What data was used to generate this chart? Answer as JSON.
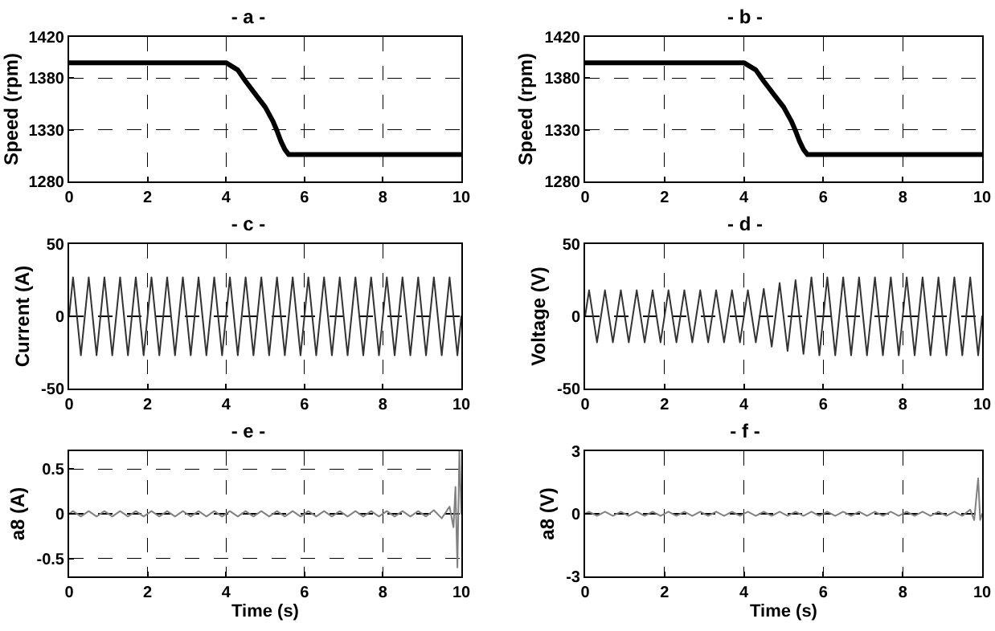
{
  "chart_data": [
    {
      "type": "line",
      "title": "- a -",
      "ylabel": "Speed (rpm)",
      "x": [
        0,
        4,
        4.3,
        4.5,
        4.8,
        5,
        5.2,
        5.3,
        5.4,
        5.5,
        5.6,
        10
      ],
      "series": [
        {
          "color": "#000000",
          "values": [
            1395,
            1395,
            1388,
            1377,
            1362,
            1352,
            1338,
            1329,
            1319,
            1311,
            1306,
            1306
          ]
        }
      ],
      "xlim": [
        0,
        10
      ],
      "xticks": [
        0,
        2,
        4,
        6,
        8,
        10
      ],
      "ylim": [
        1280,
        1420
      ],
      "yticks": [
        1280,
        1330,
        1380,
        1420
      ],
      "grid": true,
      "line_style": "solid"
    },
    {
      "type": "line",
      "title": "- b -",
      "ylabel": "Speed (rpm)",
      "x": [
        0,
        4,
        4.3,
        4.5,
        4.8,
        5,
        5.2,
        5.3,
        5.4,
        5.5,
        5.6,
        10
      ],
      "series": [
        {
          "color": "#000000",
          "values": [
            1395,
            1395,
            1388,
            1377,
            1362,
            1352,
            1338,
            1329,
            1319,
            1311,
            1306,
            1306
          ]
        }
      ],
      "xlim": [
        0,
        10
      ],
      "xticks": [
        0,
        2,
        4,
        6,
        8,
        10
      ],
      "ylim": [
        1280,
        1420
      ],
      "yticks": [
        1280,
        1330,
        1380,
        1420
      ],
      "grid": true,
      "line_style": "solid"
    },
    {
      "type": "line",
      "title": "- c -",
      "ylabel": "Current (A)",
      "x": [
        0,
        0.1,
        0.3,
        0.5,
        0.7,
        0.9,
        1.1,
        1.3,
        1.5,
        1.7,
        1.9,
        2.1,
        2.3,
        2.5,
        2.7,
        2.9,
        3.1,
        3.3,
        3.5,
        3.7,
        3.9,
        4.1,
        4.3,
        4.5,
        4.7,
        4.9,
        5.1,
        5.3,
        5.5,
        5.7,
        5.9,
        6.1,
        6.3,
        6.5,
        6.7,
        6.9,
        7.1,
        7.3,
        7.5,
        7.7,
        7.9,
        8.1,
        8.3,
        8.5,
        8.7,
        8.9,
        9.1,
        9.3,
        9.5,
        9.7,
        9.9,
        10
      ],
      "series": [
        {
          "color": "#333333",
          "values": [
            0,
            27,
            -27,
            27,
            -27,
            27,
            -27,
            27,
            -27,
            27,
            -27,
            27,
            -27,
            27,
            -27,
            27,
            -27,
            27,
            -27,
            27,
            -27,
            27,
            -27,
            27,
            -27,
            27,
            -27,
            27,
            -27,
            27,
            -27,
            27,
            -27,
            27,
            -27,
            27,
            -27,
            27,
            -27,
            27,
            -27,
            27,
            -27,
            27,
            -27,
            27,
            -27,
            27,
            -27,
            27,
            -27,
            0
          ]
        }
      ],
      "xlim": [
        0,
        10
      ],
      "xticks": [
        0,
        2,
        4,
        6,
        8,
        10
      ],
      "ylim": [
        -50,
        50
      ],
      "yticks": [
        -50,
        0,
        50
      ],
      "grid": true,
      "line_style": "solid"
    },
    {
      "type": "line",
      "title": "- d -",
      "ylabel": "Voltage (V)",
      "x": [
        0,
        0.1,
        0.3,
        0.5,
        0.7,
        0.9,
        1.1,
        1.3,
        1.5,
        1.7,
        1.9,
        2.1,
        2.3,
        2.5,
        2.7,
        2.9,
        3.1,
        3.3,
        3.5,
        3.7,
        3.9,
        4.1,
        4.3,
        4.5,
        4.7,
        4.9,
        5.1,
        5.3,
        5.5,
        5.7,
        5.9,
        6.1,
        6.3,
        6.5,
        6.7,
        6.9,
        7.1,
        7.3,
        7.5,
        7.7,
        7.9,
        8.1,
        8.3,
        8.5,
        8.7,
        8.9,
        9.1,
        9.3,
        9.5,
        9.7,
        9.9,
        10
      ],
      "series": [
        {
          "color": "#333333",
          "values": [
            0,
            18,
            -18,
            18,
            -18,
            18,
            -18,
            18,
            -18,
            18,
            -18,
            18,
            -18,
            18,
            -18,
            18,
            -18,
            18,
            -18,
            18,
            -18,
            18,
            -18,
            19,
            -21,
            23,
            -24,
            25,
            -26,
            27,
            -27,
            27,
            -27,
            27,
            -27,
            27,
            -27,
            27,
            -27,
            27,
            -27,
            27,
            -27,
            27,
            -27,
            27,
            -27,
            27,
            -27,
            27,
            -27,
            0
          ]
        }
      ],
      "xlim": [
        0,
        10
      ],
      "xticks": [
        0,
        2,
        4,
        6,
        8,
        10
      ],
      "ylim": [
        -50,
        50
      ],
      "yticks": [
        -50,
        0,
        50
      ],
      "grid": true,
      "line_style": "solid"
    },
    {
      "type": "line",
      "title": "- e -",
      "ylabel": "a8 (A)",
      "xlabel": "Time (s)",
      "x": [
        0,
        0.1,
        0.3,
        0.5,
        0.7,
        0.9,
        1.1,
        1.3,
        1.5,
        1.7,
        1.9,
        2.1,
        2.3,
        2.5,
        2.7,
        2.9,
        3.1,
        3.3,
        3.5,
        3.7,
        3.9,
        4.1,
        4.3,
        4.5,
        4.7,
        4.9,
        5.1,
        5.3,
        5.5,
        5.7,
        5.9,
        6.1,
        6.3,
        6.5,
        6.7,
        6.9,
        7.1,
        7.3,
        7.5,
        7.7,
        7.9,
        8.1,
        8.3,
        8.5,
        8.7,
        8.9,
        9.1,
        9.3,
        9.5,
        9.7,
        9.8,
        9.85,
        9.9,
        9.95,
        10
      ],
      "series": [
        {
          "color": "#808080",
          "values": [
            0,
            0.03,
            -0.03,
            0.03,
            -0.03,
            0.03,
            -0.03,
            0.03,
            -0.03,
            0.03,
            -0.03,
            0.03,
            -0.03,
            0.03,
            -0.03,
            0.03,
            -0.03,
            0.03,
            -0.03,
            0.03,
            -0.03,
            0.03,
            -0.03,
            0.03,
            -0.03,
            0.03,
            -0.03,
            0.03,
            -0.03,
            0.03,
            -0.03,
            0.03,
            -0.03,
            0.03,
            -0.03,
            0.03,
            -0.03,
            0.03,
            -0.03,
            0.03,
            -0.03,
            0.03,
            -0.03,
            0.03,
            -0.03,
            0.03,
            -0.03,
            0.04,
            -0.05,
            0.08,
            -0.15,
            0.3,
            -0.6,
            0.7,
            0
          ]
        }
      ],
      "xlim": [
        0,
        10
      ],
      "xticks": [
        0,
        2,
        4,
        6,
        8,
        10
      ],
      "ylim": [
        -0.7,
        0.7
      ],
      "yticks": [
        -0.5,
        0,
        0.5
      ],
      "grid": true,
      "line_style": "solid"
    },
    {
      "type": "line",
      "title": "- f -",
      "ylabel": "a8 (V)",
      "xlabel": "Time (s)",
      "x": [
        0,
        0.1,
        0.3,
        0.5,
        0.7,
        0.9,
        1.1,
        1.3,
        1.5,
        1.7,
        1.9,
        2.1,
        2.3,
        2.5,
        2.7,
        2.9,
        3.1,
        3.3,
        3.5,
        3.7,
        3.9,
        4.1,
        4.3,
        4.5,
        4.7,
        4.9,
        5.1,
        5.3,
        5.5,
        5.7,
        5.9,
        6.1,
        6.3,
        6.5,
        6.7,
        6.9,
        7.1,
        7.3,
        7.5,
        7.7,
        7.9,
        8.1,
        8.3,
        8.5,
        8.7,
        8.9,
        9.1,
        9.3,
        9.5,
        9.7,
        9.8,
        9.9,
        9.95,
        10
      ],
      "series": [
        {
          "color": "#808080",
          "values": [
            0,
            0.1,
            -0.1,
            0.1,
            -0.1,
            0.1,
            -0.1,
            0.1,
            -0.1,
            0.1,
            -0.1,
            0.1,
            -0.1,
            0.1,
            -0.1,
            0.1,
            -0.1,
            0.1,
            -0.1,
            0.1,
            -0.1,
            0.1,
            -0.1,
            0.1,
            -0.1,
            0.1,
            -0.1,
            0.1,
            -0.1,
            0.1,
            -0.1,
            0.1,
            -0.1,
            0.1,
            -0.1,
            0.1,
            -0.1,
            0.1,
            -0.1,
            0.1,
            -0.1,
            0.1,
            -0.1,
            0.1,
            -0.1,
            0.1,
            -0.1,
            0.1,
            -0.1,
            0.2,
            -0.3,
            1.7,
            -0.3,
            0
          ]
        }
      ],
      "xlim": [
        0,
        10
      ],
      "xticks": [
        0,
        2,
        4,
        6,
        8,
        10
      ],
      "ylim": [
        -3,
        3
      ],
      "yticks": [
        -3,
        0,
        3
      ],
      "grid": true,
      "line_style": "solid"
    }
  ]
}
